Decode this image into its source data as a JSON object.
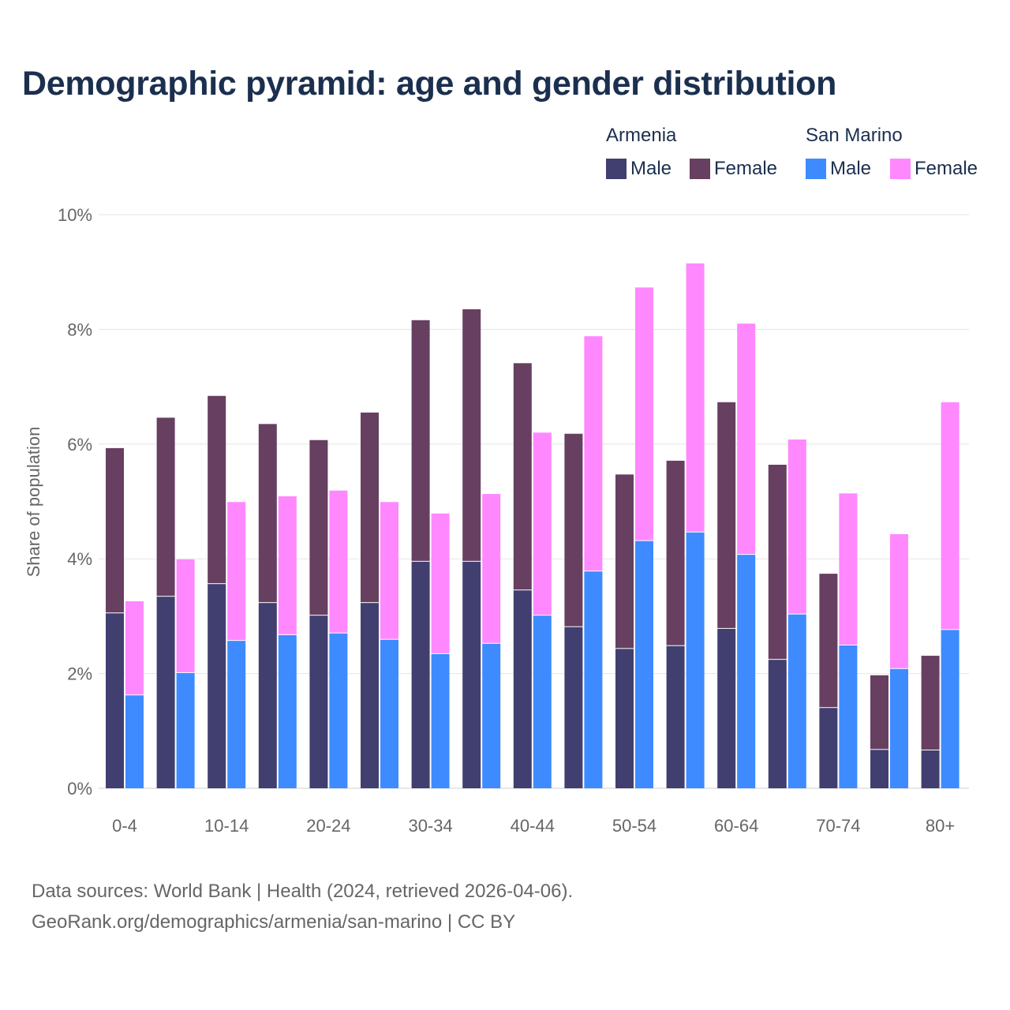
{
  "colors": {
    "armenia_male": "#413f70",
    "armenia_female": "#673f60",
    "sanmarino_male": "#3d8bff",
    "sanmarino_female": "#ff88ff",
    "grid": "#e6e6e6",
    "text": "#666666"
  },
  "legend": {
    "group1": "Armenia",
    "group2": "San Marino",
    "items": [
      {
        "label": "Male"
      },
      {
        "label": "Female"
      },
      {
        "label": "Male"
      },
      {
        "label": "Female"
      }
    ]
  },
  "footer": {
    "line1": "Data sources: World Bank | Health (2024, retrieved 2026-04-06).",
    "line2": "GeoRank.org/demographics/armenia/san-marino | CC BY"
  },
  "chart_data": {
    "type": "bar",
    "title": "Demographic pyramid: age and gender distribution",
    "xlabel": "",
    "ylabel": "Share of population",
    "ylim": [
      0,
      10
    ],
    "yticks": [
      "0%",
      "2%",
      "4%",
      "6%",
      "8%",
      "10%"
    ],
    "ytick_values": [
      0,
      2,
      4,
      6,
      8,
      10
    ],
    "categories": [
      "0-4",
      "5-9",
      "10-14",
      "15-19",
      "20-24",
      "25-29",
      "30-34",
      "35-39",
      "40-44",
      "45-49",
      "50-54",
      "55-59",
      "60-64",
      "65-69",
      "70-74",
      "75-79",
      "80+"
    ],
    "tick_labels": [
      "0-4",
      "10-14",
      "20-24",
      "30-34",
      "40-44",
      "50-54",
      "60-64",
      "70-74",
      "80+"
    ],
    "stacked_by_country": true,
    "series": [
      {
        "name": "Armenia Male",
        "country": "Armenia",
        "values": [
          3.05,
          3.34,
          3.56,
          3.23,
          3.01,
          3.23,
          3.95,
          3.95,
          3.45,
          2.81,
          2.43,
          2.48,
          2.78,
          2.24,
          1.4,
          0.67,
          0.66
        ]
      },
      {
        "name": "Armenia Female",
        "country": "Armenia",
        "values": [
          2.88,
          3.12,
          3.28,
          3.12,
          3.06,
          3.32,
          4.21,
          4.4,
          3.96,
          3.37,
          3.04,
          3.23,
          3.95,
          3.4,
          2.34,
          1.3,
          1.65
        ]
      },
      {
        "name": "San Marino Male",
        "country": "San Marino",
        "values": [
          1.62,
          2.01,
          2.57,
          2.67,
          2.7,
          2.59,
          2.34,
          2.52,
          3.01,
          3.78,
          4.31,
          4.46,
          4.07,
          3.03,
          2.49,
          2.08,
          2.76
        ]
      },
      {
        "name": "San Marino Female",
        "country": "San Marino",
        "values": [
          1.64,
          1.98,
          2.42,
          2.42,
          2.49,
          2.4,
          2.45,
          2.61,
          3.19,
          4.1,
          4.42,
          4.69,
          4.03,
          3.05,
          2.65,
          2.35,
          3.97
        ]
      }
    ],
    "legend_position": "top-right",
    "grid": true
  }
}
